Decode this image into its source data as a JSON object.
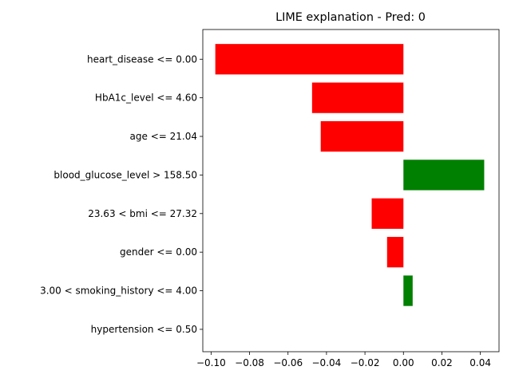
{
  "chart_data": {
    "type": "bar",
    "orientation": "horizontal",
    "title": "LIME explanation - Pred: 0",
    "xlabel": "",
    "ylabel": "",
    "xlim": [
      -0.1043,
      0.0497
    ],
    "xticks": [
      -0.1,
      -0.08,
      -0.06,
      -0.04,
      -0.02,
      0.0,
      0.02,
      0.04
    ],
    "xtick_labels": [
      "−0.10",
      "−0.08",
      "−0.06",
      "−0.04",
      "−0.02",
      "0.00",
      "0.02",
      "0.04"
    ],
    "grid": false,
    "legend": "none",
    "categories": [
      "heart_disease <= 0.00",
      "HbA1c_level <= 4.60",
      "age <= 21.04",
      "blood_glucose_level > 158.50",
      "23.63 < bmi <= 27.32",
      "gender <= 0.00",
      "3.00 < smoking_history <= 4.00",
      "hypertension <= 0.50"
    ],
    "values": [
      -0.0978,
      -0.0475,
      -0.043,
      0.042,
      -0.0165,
      -0.0085,
      0.0048,
      0.0
    ],
    "colors": {
      "positive": "#008000",
      "negative": "#ff0000",
      "axis": "#000000"
    }
  }
}
